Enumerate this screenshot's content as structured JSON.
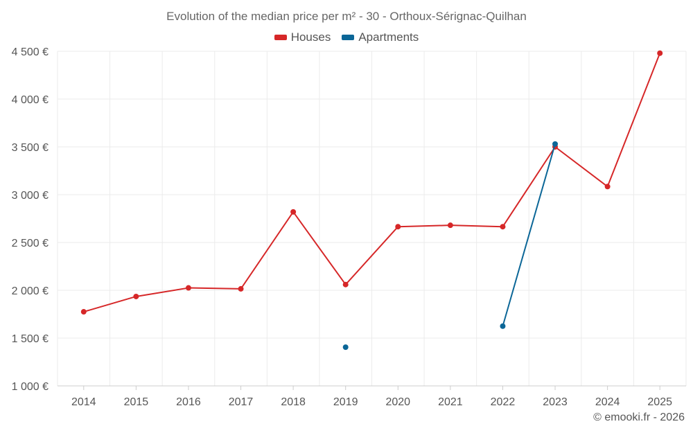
{
  "chart_data": {
    "type": "line",
    "title": "Evolution of the median price per m² - 30 - Orthoux-Sérignac-Quilhan",
    "xlabel": "",
    "ylabel": "",
    "categories": [
      "2014",
      "2015",
      "2016",
      "2017",
      "2018",
      "2019",
      "2020",
      "2021",
      "2022",
      "2023",
      "2024",
      "2025"
    ],
    "ylim": [
      1000,
      4500
    ],
    "yticks": [
      1000,
      1500,
      2000,
      2500,
      3000,
      3500,
      4000,
      4500
    ],
    "ytick_labels": [
      "1 000 €",
      "1 500 €",
      "2 000 €",
      "2 500 €",
      "3 000 €",
      "3 500 €",
      "4 000 €",
      "4 500 €"
    ],
    "grid": true,
    "legend_position": "top-center",
    "series": [
      {
        "name": "Houses",
        "color": "#d62728",
        "values": [
          1775,
          1935,
          2025,
          2015,
          2820,
          2060,
          2665,
          2680,
          2665,
          3500,
          3085,
          4480
        ]
      },
      {
        "name": "Apartments",
        "color": "#0b6697",
        "values": [
          null,
          null,
          null,
          null,
          null,
          1405,
          null,
          null,
          1625,
          3530,
          null,
          null
        ]
      }
    ]
  },
  "credit": "© emooki.fr - 2026"
}
